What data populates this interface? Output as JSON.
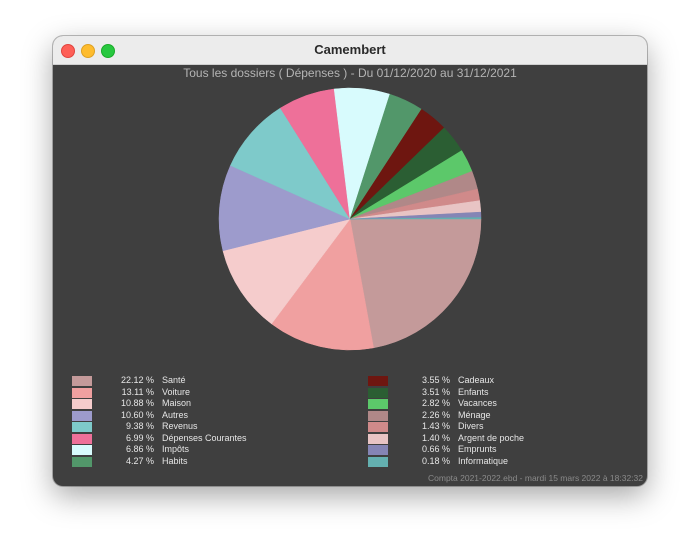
{
  "window": {
    "title": "Camembert"
  },
  "chart_data": {
    "type": "pie",
    "title": "Tous les dossiers ( Dépenses ) - Du 01/12/2020 au 31/12/2021",
    "slices": [
      {
        "label": "Santé",
        "value": 22.12,
        "pct_text": "22.12 %",
        "color": "#c49a9a"
      },
      {
        "label": "Voiture",
        "value": 13.11,
        "pct_text": "13.11 %",
        "color": "#f0a0a0"
      },
      {
        "label": "Maison",
        "value": 10.88,
        "pct_text": "10.88 %",
        "color": "#f5cccc"
      },
      {
        "label": "Autres",
        "value": 10.6,
        "pct_text": "10.60 %",
        "color": "#9d9bcc"
      },
      {
        "label": "Revenus",
        "value": 9.38,
        "pct_text": "9.38 %",
        "color": "#7ecaca"
      },
      {
        "label": "Dépenses Courantes",
        "value": 6.99,
        "pct_text": "6.99 %",
        "color": "#ee7099"
      },
      {
        "label": "Impôts",
        "value": 6.86,
        "pct_text": "6.86 %",
        "color": "#d8fbfd"
      },
      {
        "label": "Habits",
        "value": 4.27,
        "pct_text": "4.27 %",
        "color": "#52976a"
      },
      {
        "label": "Cadeaux",
        "value": 3.55,
        "pct_text": "3.55 %",
        "color": "#6e1610"
      },
      {
        "label": "Enfants",
        "value": 3.51,
        "pct_text": "3.51 %",
        "color": "#2b5e33"
      },
      {
        "label": "Vacances",
        "value": 2.82,
        "pct_text": "2.82 %",
        "color": "#5cc86a"
      },
      {
        "label": "Ménage",
        "value": 2.26,
        "pct_text": "2.26 %",
        "color": "#b08888"
      },
      {
        "label": "Divers",
        "value": 1.43,
        "pct_text": "1.43 %",
        "color": "#d08a8a"
      },
      {
        "label": "Argent de poche",
        "value": 1.4,
        "pct_text": "1.40 %",
        "color": "#e8c4c4"
      },
      {
        "label": "Emprunts",
        "value": 0.66,
        "pct_text": "0.66 %",
        "color": "#8585b5"
      },
      {
        "label": "Informatique",
        "value": 0.18,
        "pct_text": "0.18 %",
        "color": "#64b0b0"
      }
    ],
    "legend_placement": "bottom, two columns"
  },
  "footer": "Compta 2021-2022.ebd - mardi 15 mars 2022 à 18:32:32"
}
